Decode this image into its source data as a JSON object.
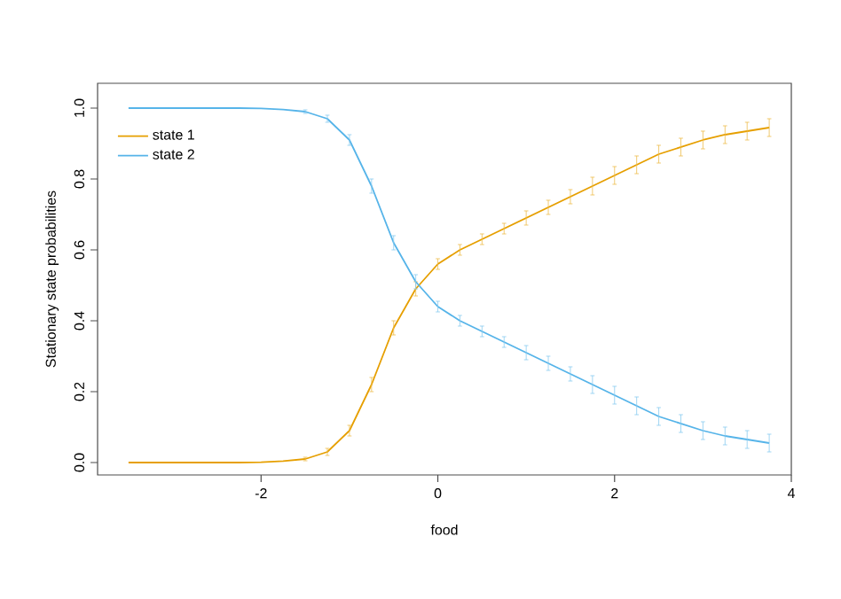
{
  "chart_data": {
    "type": "line",
    "xlabel": "food",
    "ylabel": "Stationary state probabilities",
    "x": [
      -3.5,
      -3.25,
      -3.0,
      -2.75,
      -2.5,
      -2.25,
      -2.0,
      -1.75,
      -1.5,
      -1.25,
      -1.0,
      -0.75,
      -0.5,
      -0.25,
      0.0,
      0.25,
      0.5,
      0.75,
      1.0,
      1.25,
      1.5,
      1.75,
      2.0,
      2.25,
      2.5,
      2.75,
      3.0,
      3.25,
      3.5,
      3.75
    ],
    "series": [
      {
        "name": "state 1",
        "color": "#e69f00",
        "values": [
          0,
          0,
          0,
          0,
          0,
          0,
          0.001,
          0.004,
          0.01,
          0.03,
          0.09,
          0.22,
          0.38,
          0.49,
          0.56,
          0.6,
          0.63,
          0.66,
          0.69,
          0.72,
          0.75,
          0.78,
          0.81,
          0.84,
          0.87,
          0.89,
          0.91,
          0.925,
          0.935,
          0.945
        ],
        "errors": [
          null,
          null,
          null,
          null,
          null,
          null,
          null,
          null,
          0.005,
          0.01,
          0.015,
          0.02,
          0.02,
          0.02,
          0.015,
          0.015,
          0.015,
          0.015,
          0.02,
          0.02,
          0.02,
          0.025,
          0.025,
          0.025,
          0.025,
          0.025,
          0.025,
          0.025,
          0.025,
          0.025
        ]
      },
      {
        "name": "state 2",
        "color": "#56b4e9",
        "values": [
          1,
          1,
          1,
          1,
          1,
          1,
          0.999,
          0.996,
          0.99,
          0.97,
          0.91,
          0.78,
          0.62,
          0.51,
          0.44,
          0.4,
          0.37,
          0.34,
          0.31,
          0.28,
          0.25,
          0.22,
          0.19,
          0.16,
          0.13,
          0.11,
          0.09,
          0.075,
          0.065,
          0.055
        ],
        "errors": [
          null,
          null,
          null,
          null,
          null,
          null,
          null,
          null,
          0.005,
          0.01,
          0.015,
          0.02,
          0.02,
          0.02,
          0.015,
          0.015,
          0.015,
          0.015,
          0.02,
          0.02,
          0.02,
          0.025,
          0.025,
          0.025,
          0.025,
          0.025,
          0.025,
          0.025,
          0.025,
          0.025
        ]
      }
    ],
    "xlim": [
      -3.85,
      4.0
    ],
    "ylim": [
      -0.035,
      1.07
    ],
    "xticks": [
      -2,
      0,
      2,
      4
    ],
    "yticks": [
      {
        "value": 0,
        "label": "0.0"
      },
      {
        "value": 0.2,
        "label": "0.2"
      },
      {
        "value": 0.4,
        "label": "0.4"
      },
      {
        "value": 0.6,
        "label": "0.6"
      },
      {
        "value": 0.8,
        "label": "0.8"
      },
      {
        "value": 1,
        "label": "1.0"
      }
    ],
    "legend": "top left",
    "marker": "none",
    "line_style": "solid",
    "grid": false
  }
}
